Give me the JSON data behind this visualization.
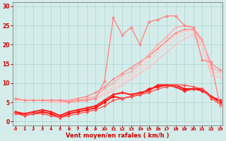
{
  "x": [
    0,
    1,
    2,
    3,
    4,
    5,
    6,
    7,
    8,
    9,
    10,
    11,
    12,
    13,
    14,
    15,
    16,
    17,
    18,
    19,
    20,
    21,
    22,
    23
  ],
  "series": [
    {
      "color": "#ff0000",
      "linewidth": 1.2,
      "markersize": 2.5,
      "values": [
        2.5,
        1.5,
        2.0,
        2.5,
        2.0,
        1.0,
        2.0,
        2.5,
        3.0,
        3.5,
        5.0,
        6.5,
        6.0,
        6.5,
        7.0,
        8.5,
        9.0,
        9.5,
        9.5,
        8.5,
        8.5,
        8.0,
        6.5,
        5.0
      ]
    },
    {
      "color": "#ff2222",
      "linewidth": 1.5,
      "markersize": 2.5,
      "values": [
        2.5,
        2.0,
        2.5,
        3.0,
        2.5,
        1.5,
        2.5,
        3.0,
        3.5,
        4.0,
        5.5,
        7.0,
        7.5,
        7.0,
        7.5,
        8.0,
        9.5,
        9.5,
        9.0,
        8.0,
        8.5,
        8.5,
        6.5,
        5.5
      ]
    },
    {
      "color": "#ff5555",
      "linewidth": 1.0,
      "markersize": 2.5,
      "values": [
        2.0,
        1.5,
        2.0,
        2.0,
        1.5,
        1.0,
        1.5,
        2.0,
        2.5,
        3.0,
        4.0,
        5.5,
        6.0,
        6.5,
        7.0,
        7.5,
        8.5,
        9.0,
        9.5,
        9.5,
        9.0,
        8.5,
        6.0,
        4.5
      ]
    },
    {
      "color": "#ff8888",
      "linewidth": 1.0,
      "markersize": 2.0,
      "values": [
        6.0,
        5.5,
        5.5,
        5.5,
        5.5,
        5.5,
        5.5,
        6.0,
        6.5,
        7.5,
        9.0,
        11.0,
        12.5,
        14.0,
        15.5,
        17.0,
        19.0,
        21.0,
        23.0,
        24.0,
        24.0,
        21.0,
        15.0,
        13.5
      ]
    },
    {
      "color": "#ffaaaa",
      "linewidth": 1.0,
      "markersize": 2.0,
      "values": [
        6.0,
        5.5,
        5.5,
        5.5,
        5.5,
        5.0,
        5.5,
        5.5,
        6.0,
        6.5,
        8.5,
        10.0,
        12.0,
        13.0,
        15.0,
        17.5,
        20.0,
        22.0,
        24.5,
        25.0,
        24.5,
        21.5,
        14.0,
        13.0
      ]
    },
    {
      "color": "#ffcccc",
      "linewidth": 1.0,
      "markersize": 1.5,
      "values": [
        6.0,
        5.5,
        5.5,
        5.5,
        5.5,
        5.0,
        5.0,
        5.5,
        5.5,
        6.0,
        7.5,
        9.0,
        11.0,
        12.0,
        14.0,
        16.0,
        18.5,
        20.5,
        22.5,
        23.5,
        23.5,
        20.0,
        13.0,
        12.5
      ]
    },
    {
      "color": "#ffbbbb",
      "linewidth": 0.8,
      "markersize": 1.5,
      "values": [
        5.5,
        5.5,
        5.5,
        5.5,
        5.0,
        5.0,
        5.0,
        5.0,
        5.5,
        6.0,
        7.0,
        8.0,
        9.5,
        11.0,
        12.5,
        14.0,
        16.0,
        18.0,
        20.0,
        21.5,
        22.5,
        19.5,
        12.0,
        11.5
      ]
    },
    {
      "color": "#ffcccc",
      "linewidth": 0.7,
      "markersize": 0,
      "values": [
        5.5,
        5.5,
        5.5,
        5.5,
        5.5,
        5.0,
        5.0,
        5.5,
        5.5,
        6.0,
        7.0,
        8.5,
        10.0,
        11.5,
        13.0,
        15.0,
        17.5,
        19.5,
        21.5,
        22.5,
        23.0,
        19.5,
        12.5,
        12.5
      ]
    }
  ],
  "jagged_series": [
    {
      "color": "#ff8888",
      "linewidth": 1.0,
      "markersize": 2.5,
      "values": [
        6.0,
        5.5,
        5.5,
        5.5,
        5.5,
        5.5,
        5.0,
        5.5,
        5.5,
        6.0,
        10.5,
        27.0,
        22.5,
        24.5,
        20.0,
        26.0,
        26.5,
        27.5,
        27.5,
        25.0,
        24.5,
        16.0,
        15.5,
        4.0
      ]
    }
  ],
  "xlim": [
    -0.3,
    23.3
  ],
  "ylim": [
    -1,
    31
  ],
  "yticks": [
    0,
    5,
    10,
    15,
    20,
    25,
    30
  ],
  "xticks": [
    0,
    1,
    2,
    3,
    4,
    5,
    6,
    7,
    8,
    9,
    10,
    11,
    12,
    13,
    14,
    15,
    16,
    17,
    18,
    19,
    20,
    21,
    22,
    23
  ],
  "xlabel": "Vent moyen/en rafales ( km/h )",
  "background_color": "#d4edeb",
  "grid_color": "#b0d4d0",
  "tick_color": "#cc0000",
  "xlabel_color": "#cc0000"
}
